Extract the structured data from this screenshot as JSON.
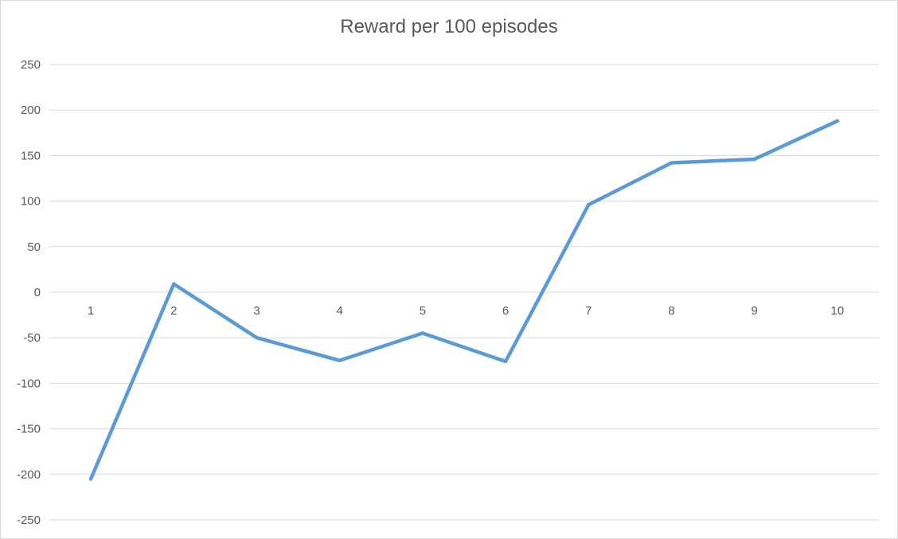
{
  "chart_data": {
    "type": "line",
    "title": "Reward per 100 episodes",
    "xlabel": "",
    "ylabel": "",
    "categories": [
      "1",
      "2",
      "3",
      "4",
      "5",
      "6",
      "7",
      "8",
      "9",
      "10"
    ],
    "series": [
      {
        "values": [
          -205,
          9,
          -50,
          -75,
          -45,
          -76,
          96,
          142,
          146,
          188
        ],
        "color": "#5b9bd5"
      }
    ],
    "ylim": [
      -250,
      250
    ],
    "yticks": [
      "250",
      "200",
      "150",
      "100",
      "50",
      "0",
      "-50",
      "-100",
      "-150",
      "-200",
      "-250"
    ],
    "grid": true,
    "legend": "none"
  }
}
